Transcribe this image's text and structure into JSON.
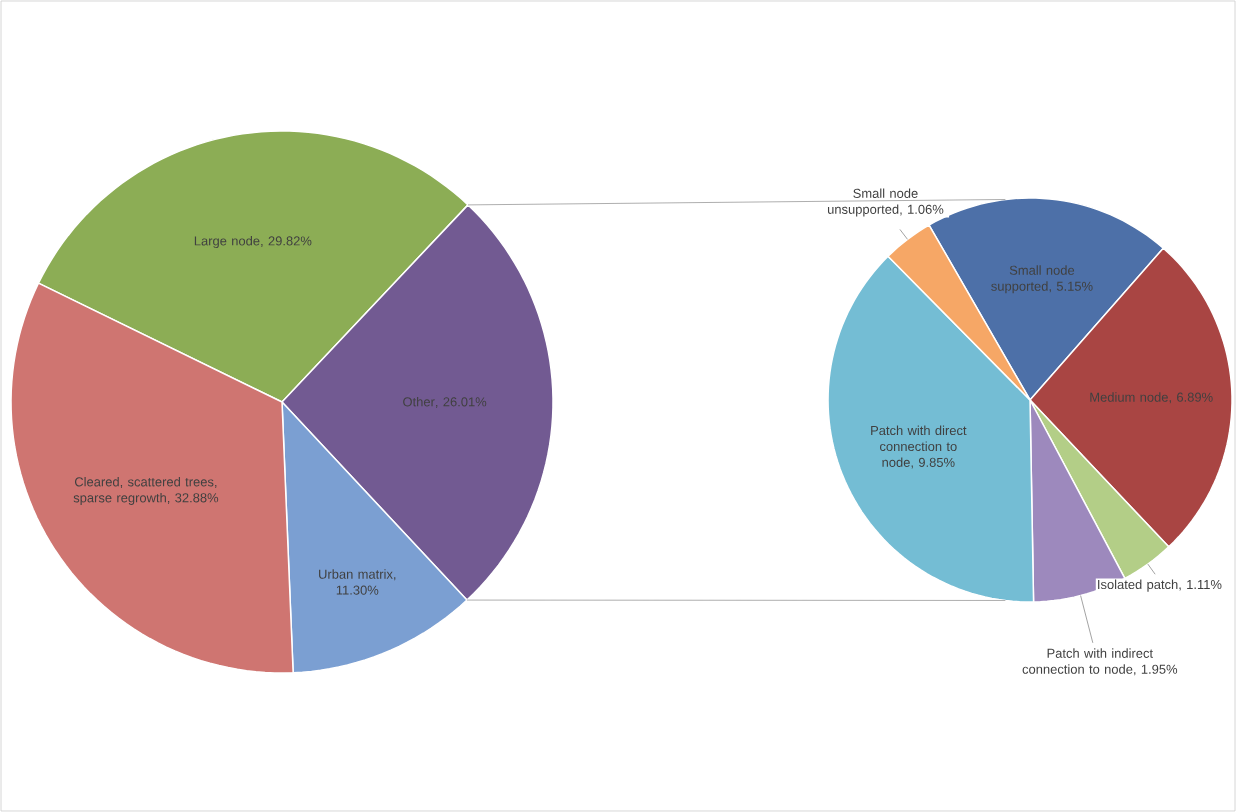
{
  "chart_data": [
    {
      "type": "pie",
      "categories": [
        "Large node",
        "Other",
        "Urban matrix",
        "Cleared, scattered trees, sparse regrowth"
      ],
      "values": [
        29.82,
        26.01,
        11.3,
        32.88
      ],
      "colors": [
        "#8cad55",
        "#725a92",
        "#7b9fd2",
        "#cf7571"
      ],
      "value_labels": [
        ", 29.82%",
        ", 26.01%",
        ", 11.30%",
        ", 32.88%"
      ]
    },
    {
      "type": "pie",
      "categories": [
        "Small node supported",
        "Medium node",
        "Isolated patch",
        "Patch with indirect connection to node",
        "Patch with direct connection to node",
        "Small node unsupported"
      ],
      "values": [
        5.15,
        6.89,
        1.11,
        1.95,
        9.85,
        1.06
      ],
      "colors": [
        "#4d70a8",
        "#a94543",
        "#b3ce87",
        "#9d89bd",
        "#74bdd4",
        "#f6a766"
      ],
      "value_labels": [
        ", 5.15%",
        ", 6.89%",
        ", 1.11%",
        ", 1.95%",
        ", 9.85%",
        ", 1.06%"
      ]
    }
  ]
}
